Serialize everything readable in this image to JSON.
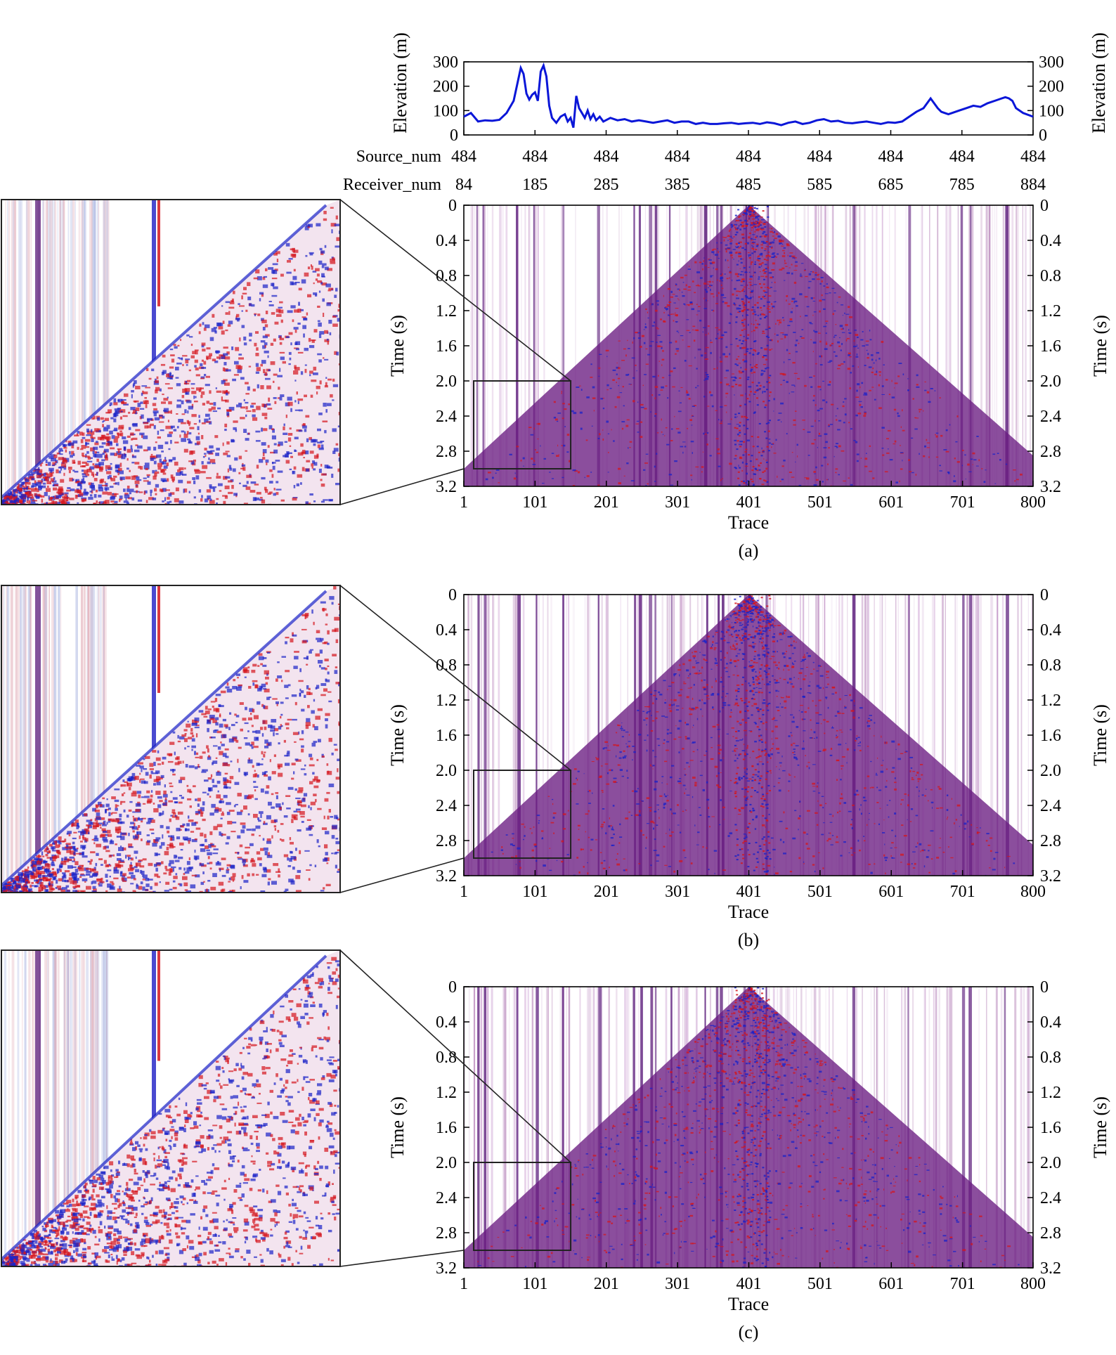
{
  "chart_data": [
    {
      "type": "line",
      "name_hint": "elevation profile",
      "ylabel": "Elevation (m)",
      "y_ticks": [
        "0",
        "100",
        "200",
        "300"
      ],
      "ylim": [
        0,
        300
      ],
      "xlim": [
        84,
        884
      ],
      "source_label": "Source_num",
      "source_ticks": [
        "484",
        "484",
        "484",
        "484",
        "484",
        "484",
        "484",
        "484",
        "484"
      ],
      "receiver_label": "Receiver_num",
      "receiver_ticks": [
        "84",
        "185",
        "285",
        "385",
        "485",
        "585",
        "685",
        "785",
        "884"
      ],
      "color": "#0a16d8",
      "x": [
        84,
        94,
        104,
        114,
        124,
        134,
        144,
        154,
        164,
        168,
        172,
        176,
        180,
        184,
        188,
        192,
        196,
        200,
        204,
        208,
        214,
        220,
        226,
        230,
        234,
        238,
        242,
        246,
        250,
        254,
        258,
        262,
        266,
        270,
        275,
        280,
        290,
        300,
        310,
        320,
        330,
        340,
        350,
        360,
        370,
        380,
        390,
        400,
        410,
        420,
        430,
        440,
        450,
        460,
        470,
        480,
        490,
        500,
        510,
        520,
        530,
        540,
        550,
        560,
        570,
        580,
        590,
        600,
        610,
        620,
        630,
        640,
        650,
        660,
        670,
        680,
        690,
        700,
        710,
        720,
        730,
        740,
        750,
        755,
        760,
        765,
        770,
        775,
        780,
        790,
        800,
        810,
        820,
        830,
        840,
        845,
        850,
        855,
        860,
        870,
        884
      ],
      "values": [
        75,
        90,
        55,
        60,
        58,
        62,
        90,
        140,
        275,
        250,
        170,
        145,
        165,
        175,
        140,
        260,
        285,
        240,
        120,
        70,
        50,
        75,
        85,
        55,
        70,
        30,
        160,
        110,
        90,
        70,
        100,
        65,
        85,
        60,
        75,
        55,
        70,
        60,
        65,
        55,
        60,
        55,
        50,
        55,
        60,
        50,
        55,
        55,
        45,
        50,
        45,
        45,
        48,
        50,
        45,
        48,
        50,
        45,
        52,
        48,
        40,
        50,
        55,
        45,
        50,
        60,
        65,
        55,
        58,
        50,
        48,
        52,
        55,
        50,
        45,
        52,
        50,
        55,
        75,
        95,
        110,
        150,
        110,
        95,
        90,
        85,
        90,
        95,
        100,
        110,
        120,
        115,
        130,
        140,
        150,
        155,
        150,
        140,
        110,
        90,
        75
      ]
    },
    {
      "type": "heatmap",
      "caption": "(a)",
      "xlabel": "Trace",
      "ylabel": "Time (s)",
      "x_ticks": [
        "1",
        "101",
        "201",
        "301",
        "401",
        "501",
        "601",
        "701",
        "800"
      ],
      "y_ticks": [
        "0",
        "0.4",
        "0.8",
        "1.2",
        "1.6",
        "2.0",
        "2.4",
        "2.8",
        "3.2"
      ],
      "xlim": [
        1,
        800
      ],
      "ylim": [
        0,
        3.2
      ],
      "zoom_window": {
        "trace_range": [
          1,
          151
        ],
        "time_range": [
          2.0,
          3.0
        ]
      },
      "colors": {
        "positive": "#d4161e",
        "negative": "#1a22c8",
        "mix": "#7a1f7f",
        "background": "#ffffff"
      }
    },
    {
      "type": "heatmap",
      "caption": "(b)",
      "xlabel": "Trace",
      "ylabel": "Time (s)",
      "x_ticks": [
        "1",
        "101",
        "201",
        "301",
        "401",
        "501",
        "601",
        "701",
        "800"
      ],
      "y_ticks": [
        "0",
        "0.4",
        "0.8",
        "1.2",
        "1.6",
        "2.0",
        "2.4",
        "2.8",
        "3.2"
      ],
      "xlim": [
        1,
        800
      ],
      "ylim": [
        0,
        3.2
      ],
      "zoom_window": {
        "trace_range": [
          1,
          151
        ],
        "time_range": [
          2.0,
          3.0
        ]
      },
      "colors": {
        "positive": "#d4161e",
        "negative": "#1a22c8",
        "mix": "#7a1f7f",
        "background": "#ffffff"
      }
    },
    {
      "type": "heatmap",
      "caption": "(c)",
      "xlabel": "Trace",
      "ylabel": "Time (s)",
      "x_ticks": [
        "1",
        "101",
        "201",
        "301",
        "401",
        "501",
        "601",
        "701",
        "800"
      ],
      "y_ticks": [
        "0",
        "0.4",
        "0.8",
        "1.2",
        "1.6",
        "2.0",
        "2.4",
        "2.8",
        "3.2"
      ],
      "xlim": [
        1,
        800
      ],
      "ylim": [
        0,
        3.2
      ],
      "zoom_window": {
        "trace_range": [
          1,
          151
        ],
        "time_range": [
          2.0,
          3.0
        ]
      },
      "colors": {
        "positive": "#d4161e",
        "negative": "#1a22c8",
        "mix": "#7a1f7f",
        "background": "#ffffff"
      }
    }
  ]
}
